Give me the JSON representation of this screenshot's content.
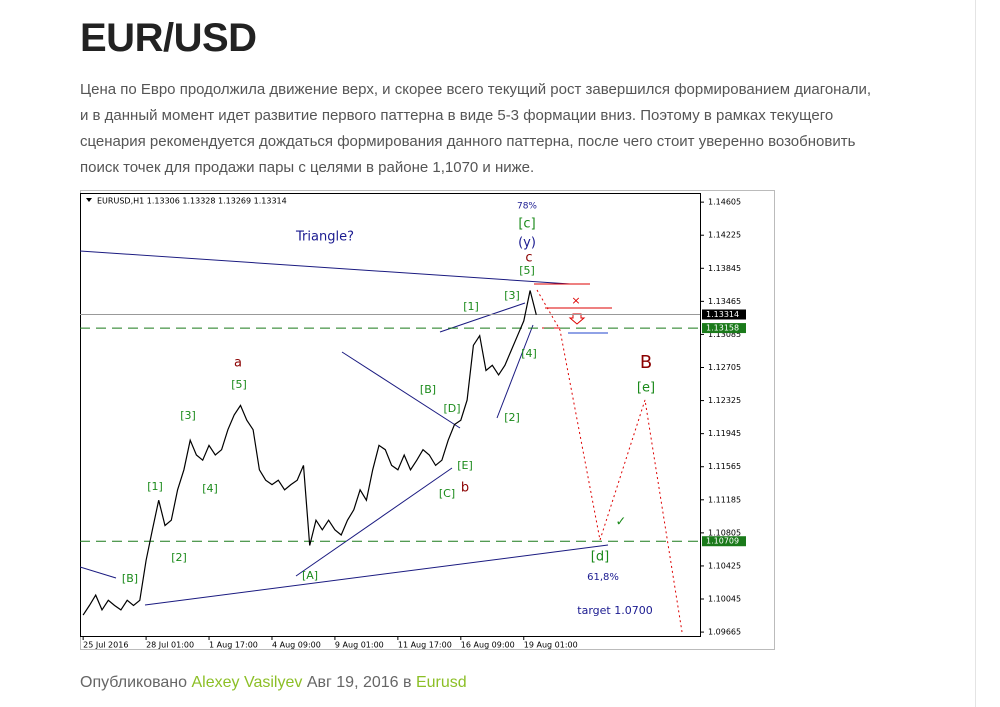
{
  "header": {
    "title": "EUR/USD"
  },
  "body": {
    "lines": [
      "Цена по Евро продолжила движение верх, и скорее всего текущий рост завершился формированием диагонали,",
      "и в данный момент идет развитие первого паттерна в виде 5-3 формации вниз.  Поэтому в рамках текущего",
      "сценария рекомендуется дождаться формирования данного паттерна, после чего стоит уверенно возобновить",
      " поиск точек для продажи пары с целями в районе 1,1070 и ниже."
    ]
  },
  "chart_data": {
    "type": "line",
    "title": "EURUSD,H1  1.13306 1.13328 1.13269 1.13314",
    "color": "#000000",
    "x": [
      0,
      1,
      2,
      3,
      4,
      5,
      6,
      7,
      8,
      9,
      10,
      11,
      12,
      13,
      14,
      15,
      16,
      17,
      18,
      19,
      20,
      21,
      22,
      23,
      24,
      25,
      26,
      27,
      28,
      29,
      30,
      31,
      32,
      33,
      34,
      35,
      36,
      37,
      38,
      39,
      40,
      41,
      42,
      43,
      44,
      45,
      46,
      47,
      48,
      49,
      50,
      51,
      52,
      53,
      54,
      55,
      56,
      57,
      58,
      59,
      60,
      61,
      62,
      63,
      64,
      65,
      66,
      67,
      68,
      69,
      70,
      71,
      72
    ],
    "values": [
      1.0986,
      1.0997,
      1.1009,
      1.0992,
      1.1003,
      1.0997,
      1.0992,
      1.1003,
      1.0997,
      1.1003,
      1.1049,
      1.1084,
      1.1118,
      1.1089,
      1.1095,
      1.113,
      1.1153,
      1.1187,
      1.117,
      1.1164,
      1.1181,
      1.117,
      1.1176,
      1.1199,
      1.1216,
      1.1227,
      1.121,
      1.1199,
      1.1153,
      1.1141,
      1.1136,
      1.1141,
      1.113,
      1.1136,
      1.1141,
      1.1158,
      1.1066,
      1.1095,
      1.1084,
      1.1095,
      1.1084,
      1.1078,
      1.1095,
      1.1107,
      1.113,
      1.1118,
      1.1153,
      1.1181,
      1.1176,
      1.1158,
      1.1153,
      1.117,
      1.1153,
      1.1164,
      1.1176,
      1.117,
      1.1158,
      1.1164,
      1.1187,
      1.1205,
      1.121,
      1.1233,
      1.1296,
      1.1307,
      1.1267,
      1.1273,
      1.1262,
      1.1273,
      1.129,
      1.1307,
      1.1324,
      1.1359,
      1.1331
    ],
    "xlim": [
      -0.5,
      98
    ],
    "xticks": [
      {
        "value": 0,
        "label": "25 Jul 2016"
      },
      {
        "value": 10,
        "label": "28 Jul 01:00"
      },
      {
        "value": 20,
        "label": "1 Aug 17:00"
      },
      {
        "value": 30,
        "label": "4 Aug 09:00"
      },
      {
        "value": 40,
        "label": "9 Aug 01:00"
      },
      {
        "value": 50,
        "label": "11 Aug 17:00"
      },
      {
        "value": 60,
        "label": "16 Aug 09:00"
      },
      {
        "value": 70,
        "label": "19 Aug 01:00"
      }
    ],
    "ylim": [
      1.0962,
      1.1471
    ],
    "yticks": [
      1.09665,
      1.10045,
      1.10425,
      1.10805,
      1.11185,
      1.11565,
      1.11945,
      1.12325,
      1.12705,
      1.13085,
      1.13465,
      1.13845,
      1.14225,
      1.14605
    ],
    "hlines": [
      1.13314,
      1.13158,
      1.10709
    ],
    "annotations": [
      "78%",
      "[c]",
      "(y)",
      "c",
      "[5]",
      "Triangle?",
      "[1]",
      "[3]",
      "[4]",
      "[2]",
      "a",
      "[5]",
      "[3]",
      "[1]",
      "[4]",
      "[2]",
      "[B]",
      "[A]",
      "[B]",
      "[D]",
      "[E]",
      "[C]",
      "b",
      "B",
      "[e]",
      "[d]",
      "61,8%",
      "target 1.0700",
      "✓"
    ]
  },
  "footer": {
    "prefix": "Опубликовано",
    "author": "Alexey Vasilyev",
    "date": "Авг 19, 2016",
    "in": "в",
    "category": "Eurusd"
  }
}
